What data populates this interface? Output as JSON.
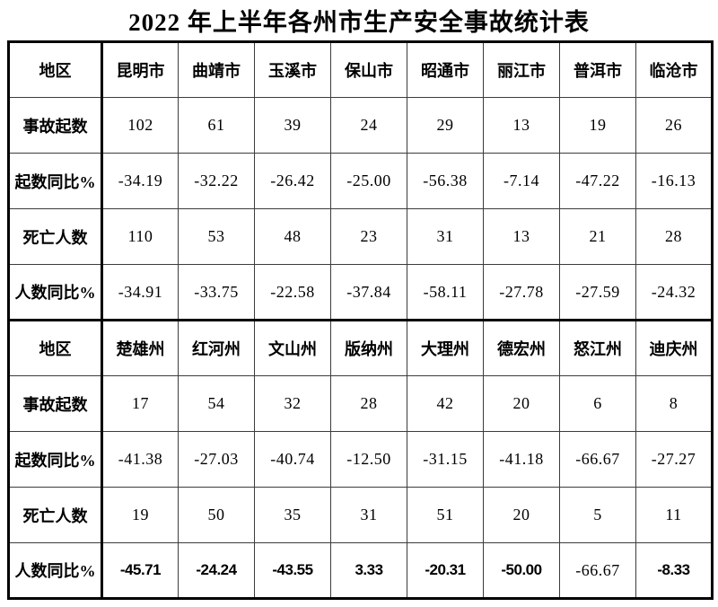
{
  "colors": {
    "background": "#ffffff",
    "text": "#000000",
    "border": "#000000"
  },
  "chart_data": {
    "type": "table",
    "title": "2022 年上半年各州市生产安全事故统计表",
    "row_labels": [
      "事故起数",
      "起数同比%",
      "死亡人数",
      "人数同比%"
    ],
    "sections": [
      {
        "header": [
          "地区",
          "昆明市",
          "曲靖市",
          "玉溪市",
          "保山市",
          "昭通市",
          "丽江市",
          "普洱市",
          "临沧市"
        ],
        "rows": [
          {
            "label": "事故起数",
            "values": [
              "102",
              "61",
              "39",
              "24",
              "29",
              "13",
              "19",
              "26"
            ]
          },
          {
            "label": "起数同比%",
            "values": [
              "-34.19",
              "-32.22",
              "-26.42",
              "-25.00",
              "-56.38",
              "-7.14",
              "-47.22",
              "-16.13"
            ]
          },
          {
            "label": "死亡人数",
            "values": [
              "110",
              "53",
              "48",
              "23",
              "31",
              "13",
              "21",
              "28"
            ]
          },
          {
            "label": "人数同比%",
            "values": [
              "-34.91",
              "-33.75",
              "-22.58",
              "-37.84",
              "-58.11",
              "-27.78",
              "-27.59",
              "-24.32"
            ]
          }
        ]
      },
      {
        "header": [
          "地区",
          "楚雄州",
          "红河州",
          "文山州",
          "版纳州",
          "大理州",
          "德宏州",
          "怒江州",
          "迪庆州"
        ],
        "rows": [
          {
            "label": "事故起数",
            "values": [
              "17",
              "54",
              "32",
              "28",
              "42",
              "20",
              "6",
              "8"
            ]
          },
          {
            "label": "起数同比%",
            "values": [
              "-41.38",
              "-27.03",
              "-40.74",
              "-12.50",
              "-31.15",
              "-41.18",
              "-66.67",
              "-27.27"
            ]
          },
          {
            "label": "死亡人数",
            "values": [
              "19",
              "50",
              "35",
              "31",
              "51",
              "20",
              "5",
              "11"
            ]
          },
          {
            "label": "人数同比%",
            "values": [
              "-45.71",
              "-24.24",
              "-43.55",
              "3.33",
              "-20.31",
              "-50.00",
              "-66.67",
              "-8.33"
            ]
          }
        ]
      }
    ]
  }
}
